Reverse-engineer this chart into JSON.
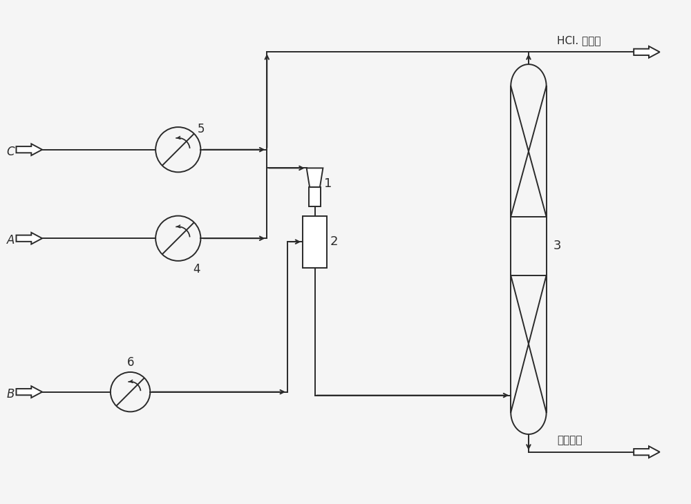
{
  "bg_color": "#f5f5f5",
  "line_color": "#2a2a2a",
  "labels": {
    "C": "C",
    "A": "A",
    "B": "B",
    "pump5": "5",
    "pump4": "4",
    "pump6": "6",
    "device1": "1",
    "device2": "2",
    "column3": "3",
    "top_out": "HCl. 光气等",
    "bottom_out": "精馏提线"
  },
  "figsize": [
    10.0,
    7.3
  ],
  "dpi": 100
}
